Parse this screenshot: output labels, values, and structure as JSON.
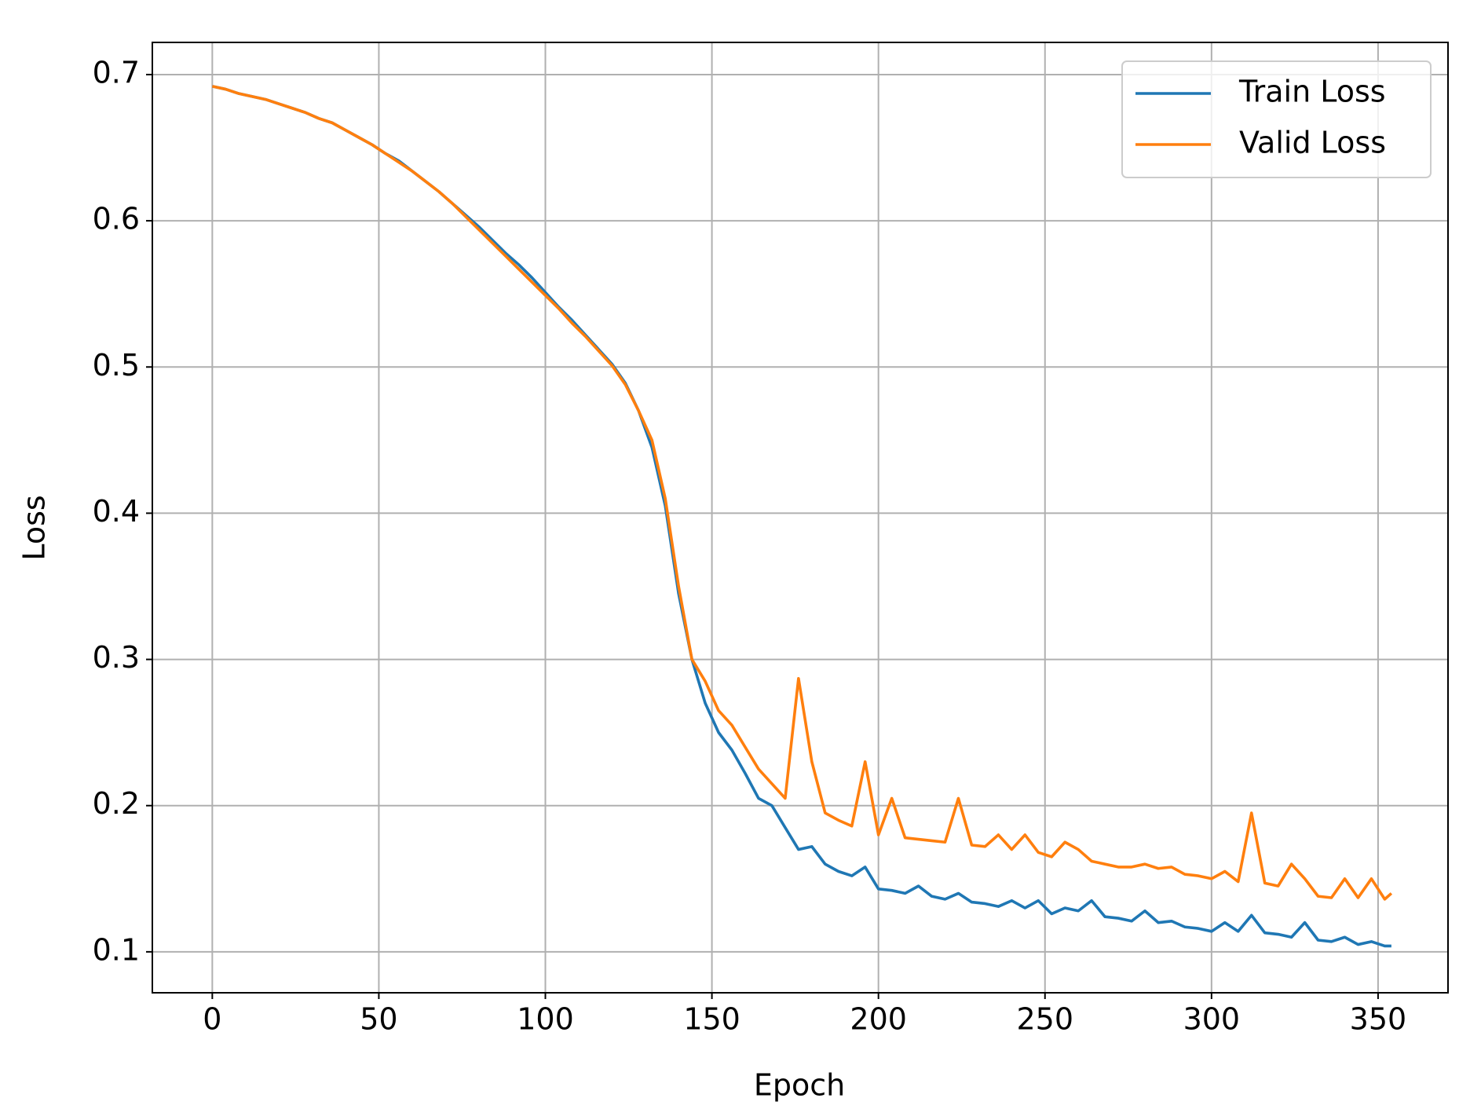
{
  "chart_data": {
    "type": "line",
    "xlabel": "Epoch",
    "ylabel": "Loss",
    "x": [
      0,
      4,
      8,
      12,
      16,
      20,
      24,
      28,
      32,
      36,
      40,
      44,
      48,
      52,
      56,
      60,
      64,
      68,
      72,
      76,
      80,
      84,
      88,
      92,
      96,
      100,
      104,
      108,
      112,
      116,
      120,
      124,
      128,
      132,
      136,
      140,
      144,
      148,
      152,
      156,
      160,
      164,
      168,
      172,
      176,
      180,
      184,
      188,
      192,
      196,
      200,
      204,
      208,
      212,
      216,
      220,
      224,
      228,
      232,
      236,
      240,
      244,
      248,
      252,
      256,
      260,
      264,
      268,
      272,
      276,
      280,
      284,
      288,
      292,
      296,
      300,
      304,
      308,
      312,
      316,
      320,
      324,
      328,
      332,
      336,
      340,
      344,
      348,
      352,
      354
    ],
    "series": [
      {
        "name": "Train Loss",
        "color": "#1f77b4",
        "values": [
          0.692,
          0.69,
          0.687,
          0.685,
          0.683,
          0.68,
          0.677,
          0.674,
          0.67,
          0.667,
          0.662,
          0.657,
          0.652,
          0.646,
          0.641,
          0.634,
          0.627,
          0.62,
          0.612,
          0.604,
          0.596,
          0.587,
          0.578,
          0.57,
          0.561,
          0.551,
          0.541,
          0.532,
          0.522,
          0.512,
          0.502,
          0.489,
          0.47,
          0.445,
          0.405,
          0.345,
          0.3,
          0.27,
          0.25,
          0.238,
          0.222,
          0.205,
          0.2,
          0.185,
          0.17,
          0.172,
          0.16,
          0.155,
          0.152,
          0.158,
          0.143,
          0.142,
          0.14,
          0.145,
          0.138,
          0.136,
          0.14,
          0.134,
          0.133,
          0.131,
          0.135,
          0.13,
          0.135,
          0.126,
          0.13,
          0.128,
          0.135,
          0.124,
          0.123,
          0.121,
          0.128,
          0.12,
          0.121,
          0.117,
          0.116,
          0.114,
          0.12,
          0.114,
          0.125,
          0.113,
          0.112,
          0.11,
          0.12,
          0.108,
          0.107,
          0.11,
          0.105,
          0.107,
          0.104,
          0.104
        ]
      },
      {
        "name": "Valid Loss",
        "color": "#ff7f0e",
        "values": [
          0.692,
          0.69,
          0.687,
          0.685,
          0.683,
          0.68,
          0.677,
          0.674,
          0.67,
          0.667,
          0.662,
          0.657,
          0.652,
          0.646,
          0.64,
          0.634,
          0.627,
          0.62,
          0.612,
          0.603,
          0.594,
          0.585,
          0.576,
          0.567,
          0.558,
          0.549,
          0.54,
          0.53,
          0.521,
          0.511,
          0.501,
          0.488,
          0.47,
          0.45,
          0.41,
          0.35,
          0.3,
          0.285,
          0.265,
          0.255,
          0.24,
          0.225,
          0.215,
          0.205,
          0.287,
          0.23,
          0.195,
          0.19,
          0.186,
          0.23,
          0.18,
          0.205,
          0.178,
          0.177,
          0.176,
          0.175,
          0.205,
          0.173,
          0.172,
          0.18,
          0.17,
          0.18,
          0.168,
          0.165,
          0.175,
          0.17,
          0.162,
          0.16,
          0.158,
          0.158,
          0.16,
          0.157,
          0.158,
          0.153,
          0.152,
          0.15,
          0.155,
          0.148,
          0.195,
          0.147,
          0.145,
          0.16,
          0.15,
          0.138,
          0.137,
          0.15,
          0.137,
          0.15,
          0.136,
          0.14
        ]
      }
    ],
    "xlim": [
      -18,
      371
    ],
    "ylim": [
      0.072,
      0.722
    ],
    "xticks": [
      0,
      50,
      100,
      150,
      200,
      250,
      300,
      350
    ],
    "yticks": [
      0.1,
      0.2,
      0.3,
      0.4,
      0.5,
      0.6,
      0.7
    ],
    "grid": true,
    "legend": "upper right"
  }
}
